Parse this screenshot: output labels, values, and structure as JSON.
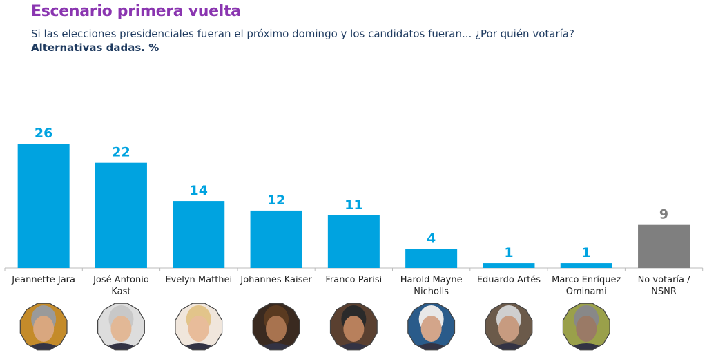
{
  "header": {
    "title": "Escenario primera vuelta",
    "subtitle": "Si las elecciones presidenciales fueran el próximo domingo y los candidatos fueran... ¿Por quién votaría?",
    "unit": "Alternativas dadas. %"
  },
  "colors": {
    "bar": "#00a3e0",
    "bar_other": "#7f7f7f",
    "title": "#8a35b0"
  },
  "chart_data": {
    "type": "bar",
    "title": "Escenario primera vuelta",
    "ylabel": "%",
    "ylim": [
      0,
      26
    ],
    "categories": [
      "Jeannette Jara",
      "José Antonio Kast",
      "Evelyn Matthei",
      "Johannes Kaiser",
      "Franco Parisi",
      "Harold Mayne Nicholls",
      "Eduardo Artés",
      "Marco Enríquez Ominami",
      "No votaría / NSNR"
    ],
    "values": [
      26,
      22,
      14,
      12,
      11,
      4,
      1,
      1,
      9
    ],
    "value_labels": [
      "26",
      "22",
      "14",
      "12",
      "11",
      "4",
      "1",
      "1",
      "9"
    ],
    "grid": false
  }
}
